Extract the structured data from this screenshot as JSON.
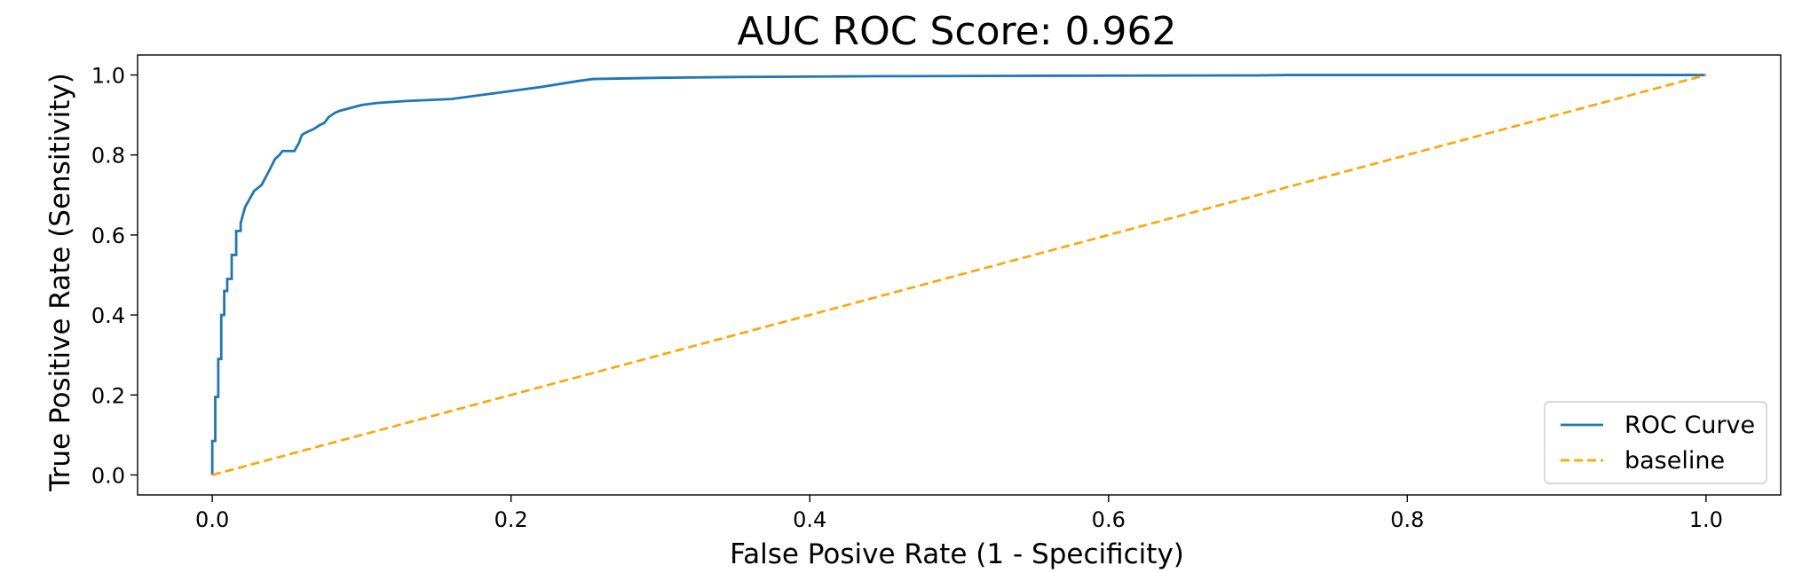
{
  "colors": {
    "roc": "#1f77b4",
    "baseline": "#ffa500",
    "axes": "#000000",
    "legend_border": "#cccccc"
  },
  "chart_data": {
    "type": "line",
    "title": "AUC ROC Score: 0.962",
    "xlabel": "False Posive Rate (1 - Specificity)",
    "ylabel": "True Positive Rate (Sensitivity)",
    "xlim": [
      -0.05,
      1.05
    ],
    "ylim": [
      -0.05,
      1.05
    ],
    "xticks": [
      0.0,
      0.2,
      0.4,
      0.6,
      0.8,
      1.0
    ],
    "xtick_labels": [
      "0.0",
      "0.2",
      "0.4",
      "0.6",
      "0.8",
      "1.0"
    ],
    "yticks": [
      0.0,
      0.2,
      0.4,
      0.6,
      0.8,
      1.0
    ],
    "ytick_labels": [
      "0.0",
      "0.2",
      "0.4",
      "0.6",
      "0.8",
      "1.0"
    ],
    "grid": false,
    "legend": "lower-right",
    "series": [
      {
        "name": "ROC Curve",
        "style": "solid",
        "x": [
          0.0,
          0.0,
          0.002,
          0.002,
          0.004,
          0.004,
          0.006,
          0.006,
          0.008,
          0.008,
          0.01,
          0.01,
          0.013,
          0.013,
          0.016,
          0.016,
          0.019,
          0.019,
          0.022,
          0.025,
          0.025,
          0.028,
          0.033,
          0.038,
          0.042,
          0.045,
          0.047,
          0.05,
          0.055,
          0.058,
          0.06,
          0.062,
          0.065,
          0.068,
          0.072,
          0.075,
          0.078,
          0.082,
          0.085,
          0.09,
          0.095,
          0.1,
          0.11,
          0.13,
          0.16,
          0.18,
          0.2,
          0.22,
          0.245,
          0.255,
          0.3,
          0.35,
          0.45,
          0.55,
          0.7,
          0.72,
          0.85,
          1.0
        ],
        "y": [
          0.0,
          0.085,
          0.085,
          0.195,
          0.195,
          0.29,
          0.29,
          0.4,
          0.4,
          0.46,
          0.46,
          0.49,
          0.49,
          0.55,
          0.55,
          0.61,
          0.61,
          0.63,
          0.67,
          0.69,
          0.69,
          0.71,
          0.725,
          0.76,
          0.79,
          0.8,
          0.81,
          0.81,
          0.81,
          0.83,
          0.85,
          0.855,
          0.86,
          0.865,
          0.875,
          0.88,
          0.895,
          0.905,
          0.91,
          0.915,
          0.92,
          0.925,
          0.93,
          0.935,
          0.94,
          0.95,
          0.96,
          0.97,
          0.985,
          0.99,
          0.993,
          0.995,
          0.997,
          0.998,
          0.999,
          1.0,
          1.0,
          1.0
        ]
      },
      {
        "name": "baseline",
        "style": "dashed",
        "x": [
          0.0,
          1.0
        ],
        "y": [
          0.0,
          1.0
        ]
      }
    ]
  }
}
